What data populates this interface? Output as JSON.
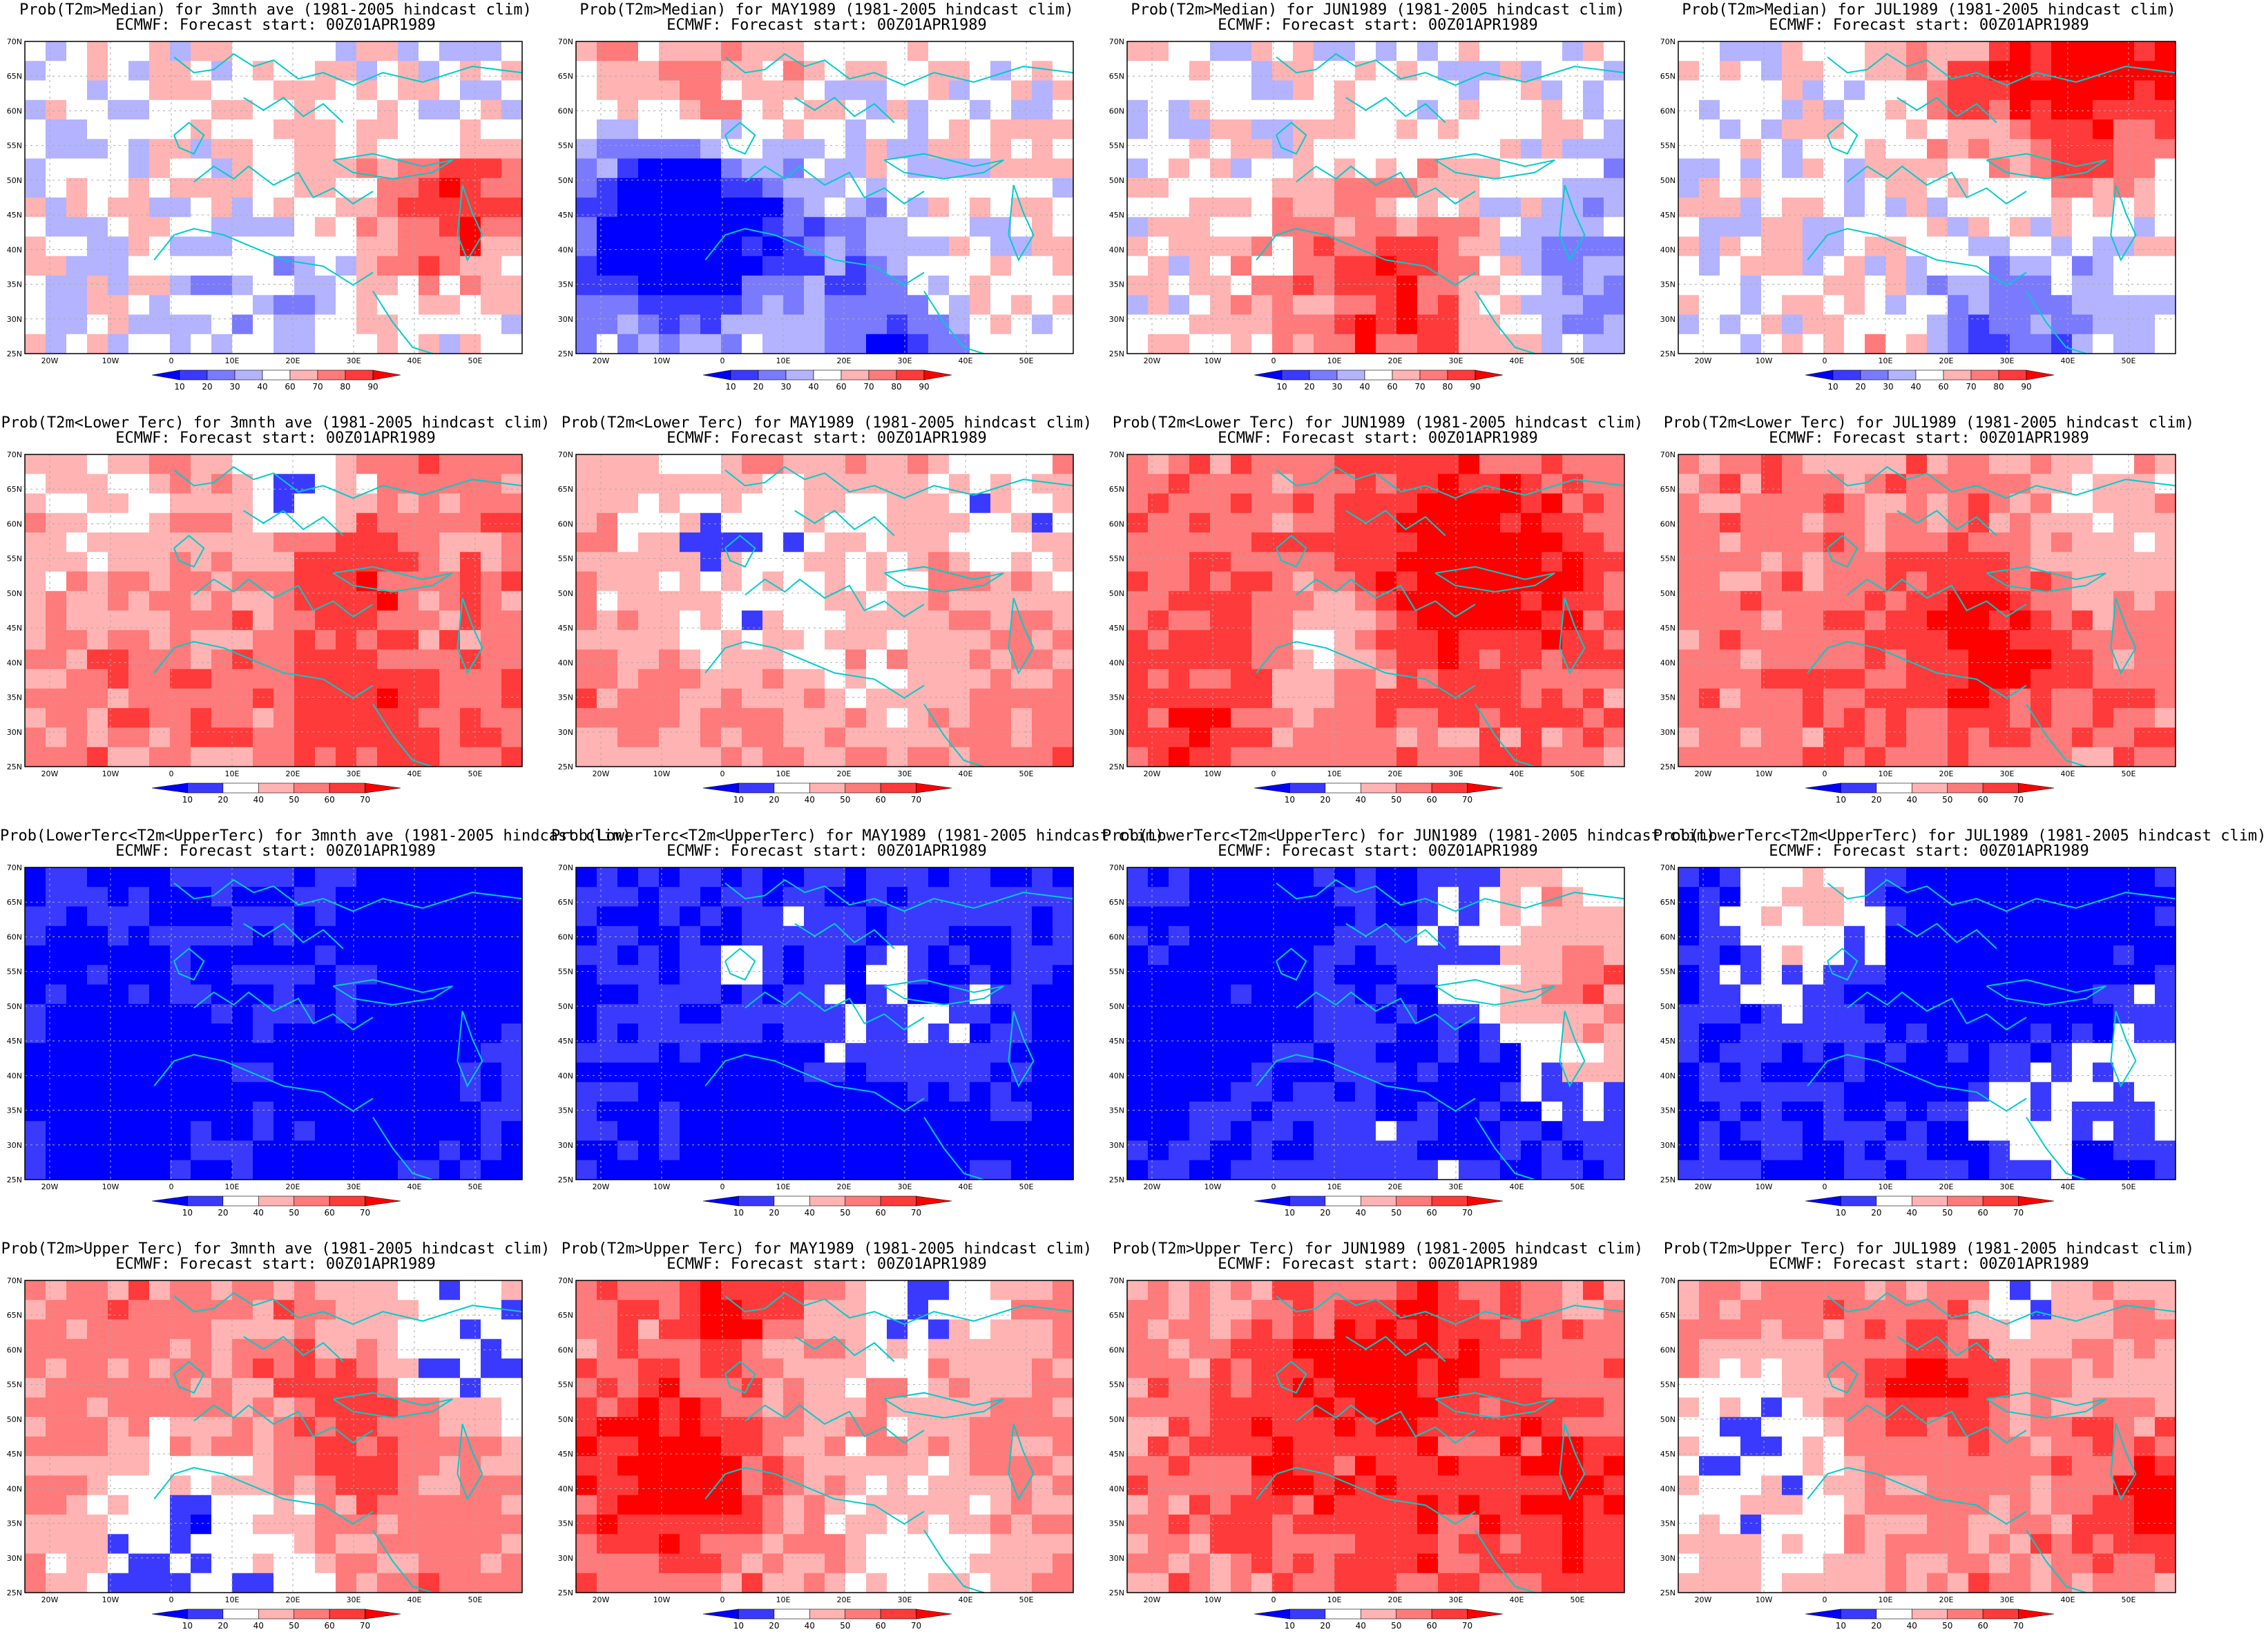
{
  "figure": {
    "subtitle": "ECMWF: Forecast start: 00Z01APR1989",
    "rows": [
      {
        "id": "median",
        "titles": [
          "Prob(T2m>Median) for 3mnth ave (1981-2005 hindcast clim)",
          "Prob(T2m>Median) for MAY1989 (1981-2005 hindcast clim)",
          "Prob(T2m>Median) for JUN1989 (1981-2005 hindcast clim)",
          "Prob(T2m>Median) for JUL1989 (1981-2005 hindcast clim)"
        ],
        "colorbar": {
          "labels": [
            "10",
            "20",
            "30",
            "40",
            "60",
            "70",
            "80",
            "90"
          ],
          "colors": [
            "#0000ff",
            "#3a3aff",
            "#7a7aff",
            "#b3b3ff",
            "#ffffff",
            "#ffb3b3",
            "#ff7a7a",
            "#ff3a3a",
            "#ff0000"
          ]
        }
      },
      {
        "id": "lower-tercile",
        "titles": [
          "Prob(T2m<Lower Terc) for 3mnth ave (1981-2005 hindcast clim)",
          "Prob(T2m<Lower Terc) for MAY1989 (1981-2005 hindcast clim)",
          "Prob(T2m<Lower Terc) for JUN1989 (1981-2005 hindcast clim)",
          "Prob(T2m<Lower Terc) for JUL1989 (1981-2005 hindcast clim)"
        ],
        "colorbar": {
          "labels": [
            "10",
            "20",
            "40",
            "50",
            "60",
            "70"
          ],
          "colors": [
            "#0000ff",
            "#3a3aff",
            "#ffffff",
            "#ffb3b3",
            "#ff7a7a",
            "#ff3a3a",
            "#ff0000"
          ]
        }
      },
      {
        "id": "middle-tercile",
        "titles": [
          "Prob(LowerTerc<T2m<UpperTerc) for 3mnth ave (1981-2005 hindcast clim)",
          "Prob(LowerTerc<T2m<UpperTerc) for MAY1989 (1981-2005 hindcast clim)",
          "Prob(LowerTerc<T2m<UpperTerc) for JUN1989 (1981-2005 hindcast clim)",
          "Prob(LowerTerc<T2m<UpperTerc) for JUL1989 (1981-2005 hindcast clim)"
        ],
        "colorbar": {
          "labels": [
            "10",
            "20",
            "40",
            "50",
            "60",
            "70"
          ],
          "colors": [
            "#0000ff",
            "#3a3aff",
            "#ffffff",
            "#ffb3b3",
            "#ff7a7a",
            "#ff3a3a",
            "#ff0000"
          ]
        }
      },
      {
        "id": "upper-tercile",
        "titles": [
          "Prob(T2m>Upper Terc) for 3mnth ave (1981-2005 hindcast clim)",
          "Prob(T2m>Upper Terc) for MAY1989 (1981-2005 hindcast clim)",
          "Prob(T2m>Upper Terc) for JUN1989 (1981-2005 hindcast clim)",
          "Prob(T2m>Upper Terc) for JUL1989 (1981-2005 hindcast clim)"
        ],
        "colorbar": {
          "labels": [
            "10",
            "20",
            "40",
            "50",
            "60",
            "70"
          ],
          "colors": [
            "#0000ff",
            "#3a3aff",
            "#ffffff",
            "#ffb3b3",
            "#ff7a7a",
            "#ff3a3a",
            "#ff0000"
          ]
        }
      }
    ],
    "lat_labels": [
      "70N",
      "65N",
      "60N",
      "55N",
      "50N",
      "45N",
      "40N",
      "35N",
      "30N",
      "25N"
    ],
    "lon_labels": [
      "20W",
      "10W",
      "0",
      "10E",
      "20E",
      "30E",
      "40E",
      "50E"
    ],
    "coastline_color": "#00cccc",
    "gridline_color": "#aaaaaa"
  }
}
